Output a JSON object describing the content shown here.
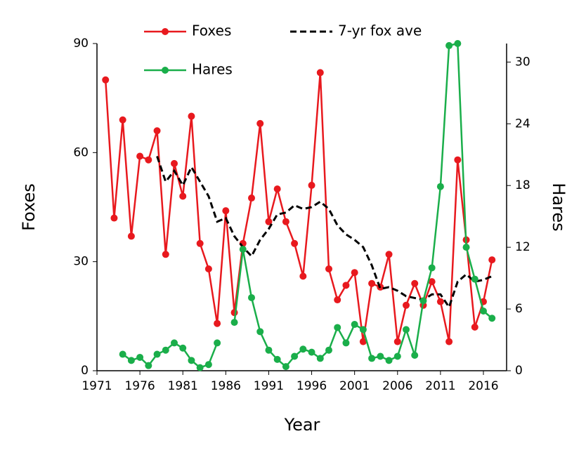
{
  "chart_data": {
    "type": "line",
    "x_label": "Year",
    "y_label": "Foxes",
    "y2_label": "Hares",
    "x": [
      1972,
      1973,
      1974,
      1975,
      1976,
      1977,
      1978,
      1979,
      1980,
      1981,
      1982,
      1983,
      1984,
      1985,
      1986,
      1987,
      1988,
      1989,
      1990,
      1991,
      1992,
      1993,
      1994,
      1995,
      1996,
      1997,
      1998,
      1999,
      2000,
      2001,
      2002,
      2003,
      2004,
      2005,
      2006,
      2007,
      2008,
      2009,
      2010,
      2011,
      2012,
      2013,
      2014,
      2015,
      2016,
      2017
    ],
    "xlim": [
      1971,
      2018.7
    ],
    "xticks": [
      1971,
      1976,
      1981,
      1986,
      1991,
      1996,
      2001,
      2006,
      2011,
      2016
    ],
    "ylim": [
      0,
      90
    ],
    "yticks": [
      0,
      30,
      60,
      90
    ],
    "y2lim": [
      0,
      31.8
    ],
    "y2ticks": [
      0,
      6,
      12,
      18,
      24,
      30
    ],
    "series": [
      {
        "name": "Foxes",
        "color": "#e8191e",
        "marker": true,
        "dashed": false,
        "values": [
          80,
          42,
          69,
          37,
          59,
          58,
          66,
          32,
          57,
          48,
          70,
          35,
          28,
          13,
          44,
          16,
          35,
          47.5,
          68,
          41,
          50,
          41,
          35,
          26,
          51,
          82,
          28,
          19.5,
          23.5,
          27,
          8,
          24,
          23,
          32,
          8,
          18,
          24,
          18,
          24.5,
          19,
          8,
          58,
          36,
          12,
          19,
          30.5
        ]
      },
      {
        "name": "7-yr fox ave",
        "color": "#000000",
        "marker": false,
        "dashed": true,
        "values": [
          null,
          null,
          null,
          null,
          null,
          null,
          59,
          52,
          55,
          51,
          56,
          52,
          48,
          41,
          42,
          37,
          34,
          31.5,
          36,
          39,
          43,
          43.5,
          45.5,
          44.5,
          45,
          46.5,
          44.5,
          40,
          37.5,
          36,
          34,
          29,
          22.5,
          23,
          22,
          20.5,
          20,
          19.5,
          21,
          21,
          17.5,
          24.5,
          26.5,
          24.5,
          25,
          26
        ]
      },
      {
        "name": "Hares",
        "color": "#1aae4a",
        "marker": true,
        "dashed": false,
        "axis": "y2",
        "values": [
          null,
          null,
          1.6,
          1,
          1.3,
          0.5,
          1.6,
          2,
          2.7,
          2.2,
          1,
          0.3,
          0.6,
          2.7,
          null,
          4.7,
          11.8,
          7.1,
          3.8,
          2,
          1.1,
          0.4,
          1.4,
          2.1,
          1.8,
          1.2,
          2,
          4.2,
          2.7,
          4.5,
          4,
          1.2,
          1.4,
          1,
          1.4,
          4,
          1.5,
          6.8,
          10,
          17.9,
          31.6,
          31.8,
          12,
          8.9,
          5.8,
          5.1
        ]
      }
    ]
  }
}
